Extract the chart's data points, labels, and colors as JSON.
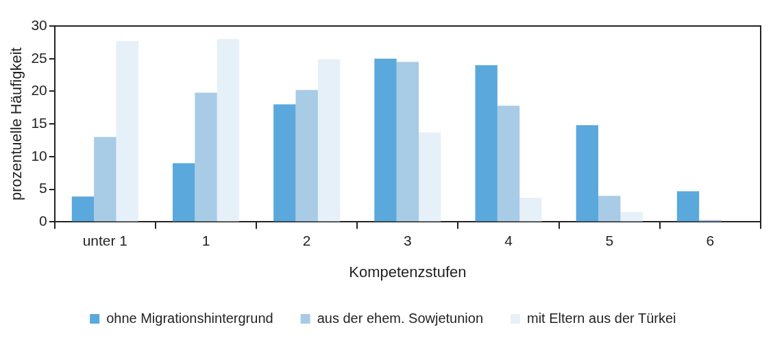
{
  "chart_data": {
    "type": "bar",
    "xlabel": "Kompetenzstufen",
    "ylabel": "prozentuelle Häufigkeit",
    "categories": [
      "unter 1",
      "1",
      "2",
      "3",
      "4",
      "5",
      "6"
    ],
    "series": [
      {
        "name": "ohne Migrationshintergrund",
        "color": "#5aa8dc",
        "values": [
          3.9,
          9,
          18,
          25,
          24,
          14.8,
          4.7
        ]
      },
      {
        "name": "aus der ehem. Sowjetunion",
        "color": "#a8cbe6",
        "values": [
          13,
          19.8,
          20.2,
          24.5,
          17.8,
          4,
          0.3
        ]
      },
      {
        "name": "mit Eltern aus der Türkei",
        "color": "#e6f0f8",
        "values": [
          27.7,
          28,
          24.9,
          13.7,
          3.7,
          1.5,
          0
        ]
      }
    ],
    "ylim": [
      0,
      30
    ],
    "yticks": [
      0,
      5,
      10,
      15,
      20,
      25,
      30
    ],
    "grid": false,
    "legend": "bottom"
  }
}
